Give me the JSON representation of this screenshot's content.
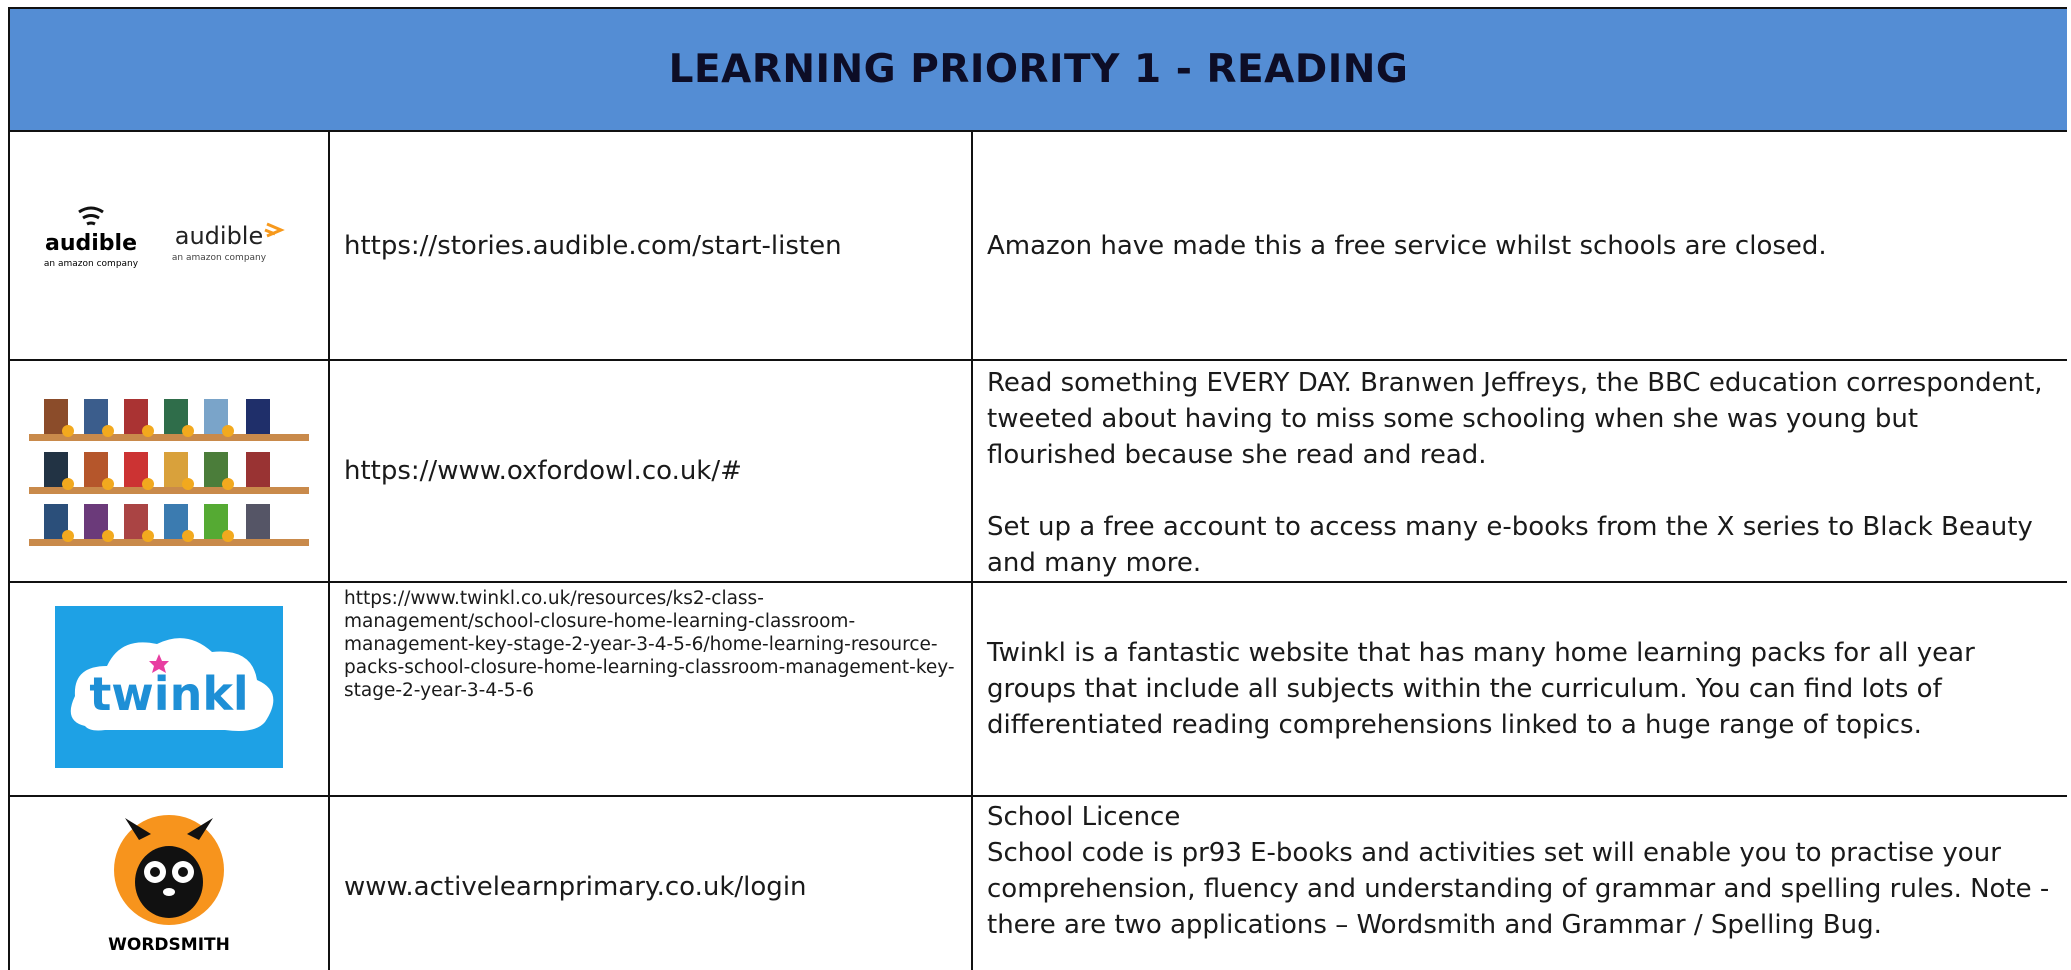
{
  "header": {
    "title": "LEARNING PRIORITY  1  -  READING"
  },
  "rows": [
    {
      "logos": [
        {
          "name": "audible",
          "tagline": "an amazon company"
        },
        {
          "name": "audible",
          "tagline": "an amazon company"
        }
      ],
      "url": "https://stories.audible.com/start-listen",
      "description": [
        "Amazon have made this a free service whilst schools are closed."
      ]
    },
    {
      "url": "https://www.oxfordowl.co.uk/#",
      "description": [
        "Read something EVERY DAY. Branwen Jeffreys, the BBC education correspondent, tweeted about having to miss some schooling when she was young but flourished because she read and read.",
        "Set up a free account to access many e-books from the X series to Black Beauty and many more."
      ]
    },
    {
      "logo": "twinkl",
      "url": "https://www.twinkl.co.uk/resources/ks2-class-management/school-closure-home-learning-classroom-management-key-stage-2-year-3-4-5-6/home-learning-resource-packs-school-closure-home-learning-classroom-management-key-stage-2-year-3-4-5-6",
      "description": [
        "Twinkl is a fantastic website that has many home learning packs for all year groups that include all subjects within the curriculum. You can find lots of differentiated reading comprehensions linked to a huge range of topics."
      ]
    },
    {
      "logo": "WORDSMITH",
      "url": "www.activelearnprimary.co.uk/login",
      "description": [
        "School Licence",
        "School code is pr93 E-books and activities set will enable you to practise your comprehension, fluency and understanding of grammar and spelling rules. Note - there are two applications – Wordsmith and Grammar / Spelling Bug."
      ]
    }
  ]
}
